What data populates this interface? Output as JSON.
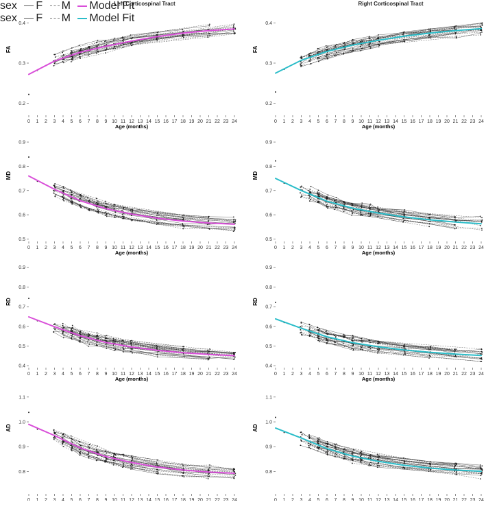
{
  "figure": {
    "left_title": "Left Corticospinal Tract",
    "right_title": "Right Corticospinal Tract",
    "legend": {
      "title": "sex",
      "female_label": "F",
      "male_label": "M",
      "fit_label": "Model Fit"
    },
    "colors": {
      "left_fit": "#d94fd9",
      "right_fit": "#2bbdc9",
      "subject": "#333333"
    }
  },
  "chart_data": [
    {
      "type": "line",
      "panel": "FA-left",
      "ylabel": "FA",
      "xlabel": "Age (months)",
      "title": "Left Corticospinal Tract",
      "x_ticks": [
        0,
        1,
        2,
        3,
        4,
        5,
        6,
        7,
        8,
        9,
        10,
        11,
        12,
        13,
        14,
        15,
        16,
        17,
        18,
        19,
        20,
        21,
        22,
        23,
        24
      ],
      "xlim": [
        0,
        24
      ],
      "ylim": [
        0.17,
        0.43
      ],
      "y_ticks": [
        0.2,
        0.3,
        0.4
      ],
      "y_tick_labels": [
        "0.2",
        "0.3",
        "0.4"
      ],
      "series": [
        {
          "name": "Model Fit",
          "color": "#d94fd9",
          "x": [
            0,
            3,
            6,
            9,
            12,
            15,
            18,
            21,
            24
          ],
          "values": [
            0.272,
            0.305,
            0.327,
            0.342,
            0.355,
            0.366,
            0.375,
            0.381,
            0.385
          ]
        }
      ],
      "outlier": {
        "x": 0,
        "y": 0.222
      }
    },
    {
      "type": "line",
      "panel": "FA-right",
      "ylabel": "FA",
      "xlabel": "Age (months)",
      "title": "Right Corticospinal Tract",
      "x_ticks": [
        0,
        1,
        2,
        3,
        4,
        5,
        6,
        7,
        8,
        9,
        10,
        11,
        12,
        13,
        14,
        15,
        16,
        17,
        18,
        19,
        20,
        21,
        22,
        23,
        24
      ],
      "xlim": [
        0,
        24
      ],
      "ylim": [
        0.17,
        0.43
      ],
      "y_ticks": [
        0.2,
        0.3,
        0.4
      ],
      "y_tick_labels": [
        "0.2",
        "0.3",
        "0.4"
      ],
      "series": [
        {
          "name": "Model Fit",
          "color": "#2bbdc9",
          "x": [
            0,
            3,
            6,
            9,
            12,
            15,
            18,
            21,
            24
          ],
          "values": [
            0.275,
            0.307,
            0.329,
            0.345,
            0.357,
            0.367,
            0.375,
            0.381,
            0.386
          ]
        }
      ],
      "outlier": {
        "x": 0,
        "y": 0.228
      }
    },
    {
      "type": "line",
      "panel": "MD-left",
      "ylabel": "MD",
      "xlabel": "Age (months)",
      "x_ticks": [
        0,
        1,
        2,
        3,
        4,
        5,
        6,
        7,
        8,
        9,
        10,
        11,
        12,
        13,
        14,
        15,
        16,
        17,
        18,
        19,
        20,
        21,
        22,
        23,
        24
      ],
      "xlim": [
        0,
        24
      ],
      "ylim": [
        0.49,
        0.92
      ],
      "y_ticks": [
        0.5,
        0.6,
        0.7,
        0.8,
        0.9
      ],
      "y_tick_labels": [
        "0.5",
        "0.6",
        "0.7",
        "0.8",
        "0.9"
      ],
      "series": [
        {
          "name": "Model Fit",
          "color": "#d94fd9",
          "x": [
            0,
            3,
            6,
            9,
            12,
            15,
            18,
            21,
            24
          ],
          "values": [
            0.76,
            0.705,
            0.658,
            0.625,
            0.603,
            0.586,
            0.574,
            0.566,
            0.561
          ]
        }
      ],
      "outlier": {
        "x": 0,
        "y": 0.838
      }
    },
    {
      "type": "line",
      "panel": "MD-right",
      "ylabel": "MD",
      "xlabel": "Age (months)",
      "x_ticks": [
        0,
        1,
        2,
        3,
        4,
        5,
        6,
        7,
        8,
        9,
        10,
        11,
        12,
        13,
        14,
        15,
        16,
        17,
        18,
        19,
        20,
        21,
        22,
        23,
        24
      ],
      "xlim": [
        0,
        24
      ],
      "ylim": [
        0.49,
        0.92
      ],
      "y_ticks": [
        0.5,
        0.6,
        0.7,
        0.8,
        0.9
      ],
      "y_tick_labels": [
        "0.5",
        "0.6",
        "0.7",
        "0.8",
        "0.9"
      ],
      "series": [
        {
          "name": "Model Fit",
          "color": "#2bbdc9",
          "x": [
            0,
            3,
            6,
            9,
            12,
            15,
            18,
            21,
            24
          ],
          "values": [
            0.75,
            0.7,
            0.656,
            0.627,
            0.607,
            0.591,
            0.579,
            0.57,
            0.563
          ]
        }
      ],
      "outlier": {
        "x": 0,
        "y": 0.822
      }
    },
    {
      "type": "line",
      "panel": "RD-left",
      "ylabel": "RD",
      "xlabel": "Age (months)",
      "x_ticks": [
        0,
        1,
        2,
        3,
        4,
        5,
        6,
        7,
        8,
        9,
        10,
        11,
        12,
        13,
        14,
        15,
        16,
        17,
        18,
        19,
        20,
        21,
        22,
        23,
        24
      ],
      "xlim": [
        0,
        24
      ],
      "ylim": [
        0.39,
        0.92
      ],
      "y_ticks": [
        0.4,
        0.5,
        0.6,
        0.7,
        0.8,
        0.9
      ],
      "y_tick_labels": [
        "0.4",
        "0.5",
        "0.6",
        "0.7",
        "0.8",
        "0.9"
      ],
      "series": [
        {
          "name": "Model Fit",
          "color": "#d94fd9",
          "x": [
            0,
            3,
            6,
            9,
            12,
            15,
            18,
            21,
            24
          ],
          "values": [
            0.648,
            0.598,
            0.552,
            0.518,
            0.495,
            0.478,
            0.466,
            0.457,
            0.451
          ]
        }
      ],
      "outlier": {
        "x": 0,
        "y": 0.742
      }
    },
    {
      "type": "line",
      "panel": "RD-right",
      "ylabel": "RD",
      "xlabel": "Age (months)",
      "x_ticks": [
        0,
        1,
        2,
        3,
        4,
        5,
        6,
        7,
        8,
        9,
        10,
        11,
        12,
        13,
        14,
        15,
        16,
        17,
        18,
        19,
        20,
        21,
        22,
        23,
        24
      ],
      "xlim": [
        0,
        24
      ],
      "ylim": [
        0.39,
        0.92
      ],
      "y_ticks": [
        0.4,
        0.5,
        0.6,
        0.7,
        0.8,
        0.9
      ],
      "y_tick_labels": [
        "0.4",
        "0.5",
        "0.6",
        "0.7",
        "0.8",
        "0.9"
      ],
      "series": [
        {
          "name": "Model Fit",
          "color": "#2bbdc9",
          "x": [
            0,
            3,
            6,
            9,
            12,
            15,
            18,
            21,
            24
          ],
          "values": [
            0.638,
            0.59,
            0.547,
            0.517,
            0.496,
            0.48,
            0.468,
            0.459,
            0.452
          ]
        }
      ],
      "outlier": {
        "x": 0,
        "y": 0.722
      }
    },
    {
      "type": "line",
      "panel": "AD-left",
      "ylabel": "AD",
      "xlabel": "Age (months)",
      "x_ticks": [
        0,
        1,
        2,
        3,
        4,
        5,
        6,
        7,
        8,
        9,
        10,
        11,
        12,
        13,
        14,
        15,
        16,
        17,
        18,
        19,
        20,
        21,
        22,
        23,
        24
      ],
      "xlim": [
        0,
        24
      ],
      "ylim": [
        0.71,
        1.13
      ],
      "y_ticks": [
        0.8,
        0.9,
        1.0,
        1.1
      ],
      "y_tick_labels": [
        "0.8",
        "0.9",
        "1.0",
        "1.1"
      ],
      "series": [
        {
          "name": "Model Fit",
          "color": "#d94fd9",
          "x": [
            0,
            3,
            6,
            9,
            12,
            15,
            18,
            21,
            24
          ],
          "values": [
            0.99,
            0.945,
            0.895,
            0.86,
            0.836,
            0.818,
            0.806,
            0.798,
            0.793
          ]
        }
      ],
      "outlier": {
        "x": 0,
        "y": 1.038
      }
    },
    {
      "type": "line",
      "panel": "AD-right",
      "ylabel": "AD",
      "xlabel": "Age (months)",
      "x_ticks": [
        0,
        1,
        2,
        3,
        4,
        5,
        6,
        7,
        8,
        9,
        10,
        11,
        12,
        13,
        14,
        15,
        16,
        17,
        18,
        19,
        20,
        21,
        22,
        23,
        24
      ],
      "xlim": [
        0,
        24
      ],
      "ylim": [
        0.71,
        1.13
      ],
      "y_ticks": [
        0.8,
        0.9,
        1.0,
        1.1
      ],
      "y_tick_labels": [
        "0.8",
        "0.9",
        "1.0",
        "1.1"
      ],
      "series": [
        {
          "name": "Model Fit",
          "color": "#2bbdc9",
          "x": [
            0,
            3,
            6,
            9,
            12,
            15,
            18,
            21,
            24
          ],
          "values": [
            0.975,
            0.935,
            0.892,
            0.862,
            0.841,
            0.825,
            0.814,
            0.806,
            0.801
          ]
        }
      ],
      "outlier": {
        "x": 0,
        "y": 1.018
      }
    }
  ]
}
